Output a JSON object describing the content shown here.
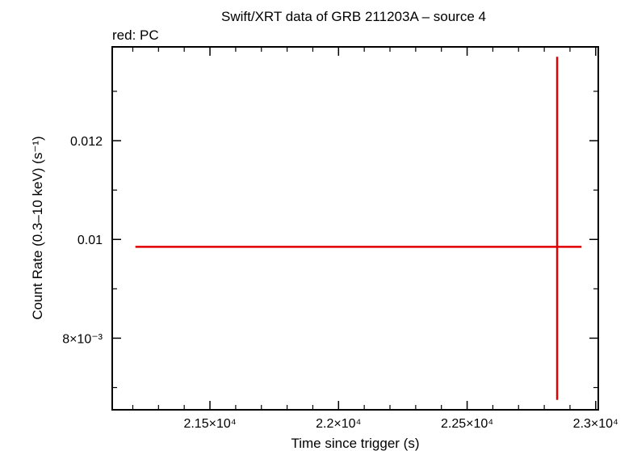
{
  "chart_data": {
    "type": "scatter",
    "title": "Swift/XRT data of GRB 211203A – source 4",
    "subtitle": "red: PC",
    "xlabel": "Time since trigger (s)",
    "ylabel": "Count Rate (0.3–10 keV) (s⁻¹)",
    "xlim": [
      21120,
      23010
    ],
    "ylim": [
      0.00655,
      0.0139
    ],
    "x_ticks": [
      {
        "value": 21500,
        "label": "2.15×10⁴"
      },
      {
        "value": 22000,
        "label": "2.2×10⁴"
      },
      {
        "value": 22500,
        "label": "2.25×10⁴"
      },
      {
        "value": 23000,
        "label": "2.3×10⁴"
      }
    ],
    "y_ticks": [
      {
        "value": 0.008,
        "label": "8×10⁻³"
      },
      {
        "value": 0.01,
        "label": "0.01"
      },
      {
        "value": 0.012,
        "label": "0.012"
      }
    ],
    "series": [
      {
        "color": "#e00000",
        "points": [
          {
            "x": 22850,
            "y": 0.00985,
            "x_lo": 21210,
            "x_hi": 22945,
            "y_lo": 0.00675,
            "y_hi": 0.0137
          }
        ]
      }
    ]
  }
}
